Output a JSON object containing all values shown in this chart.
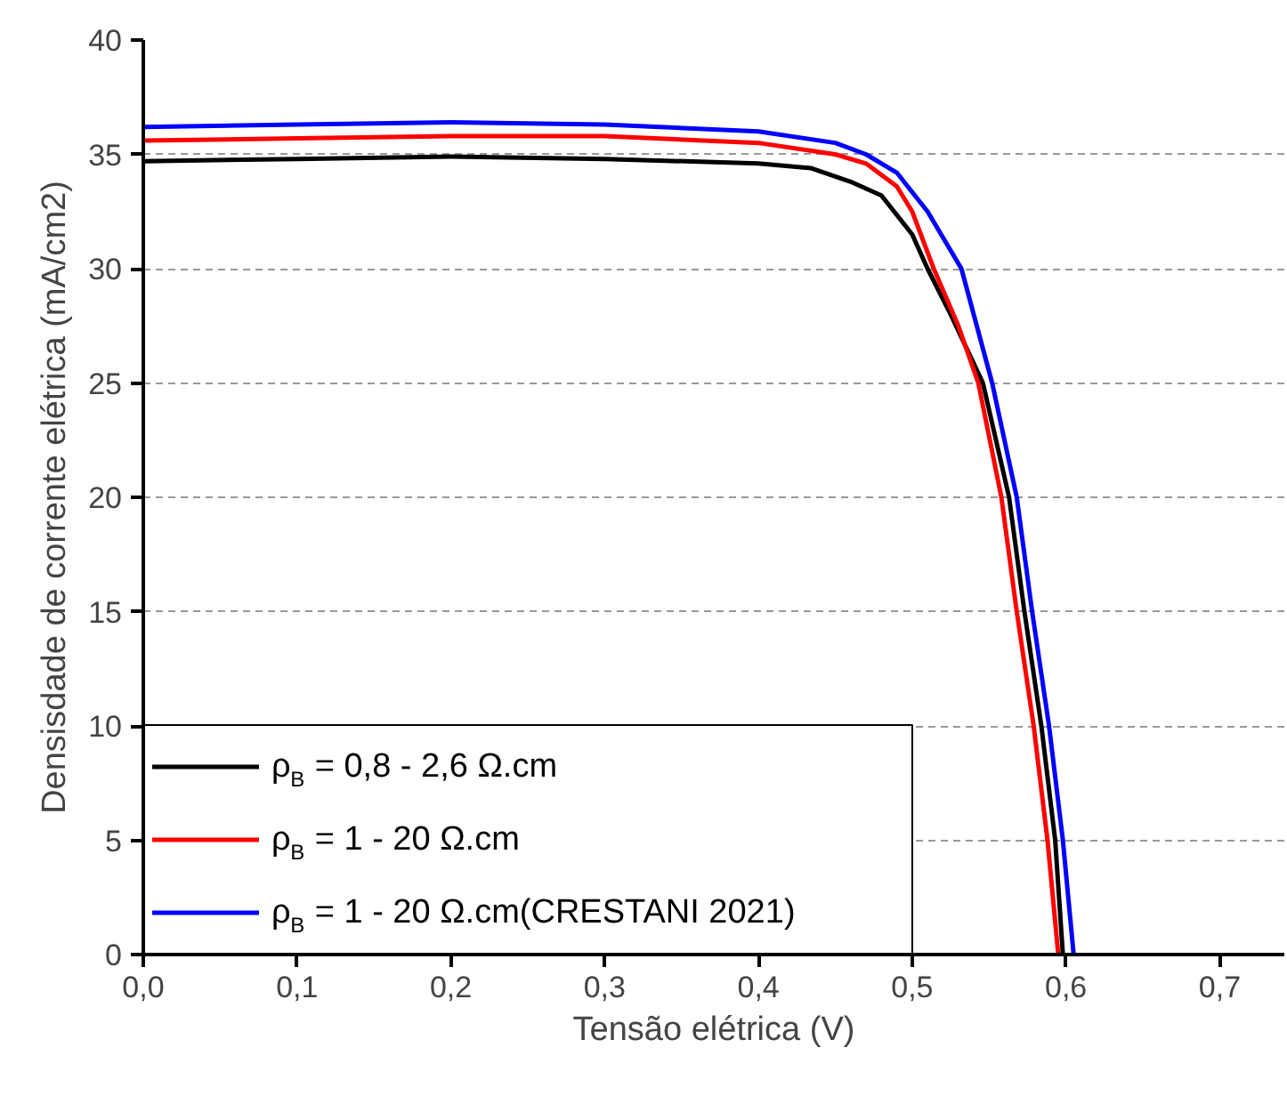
{
  "chart_data": {
    "type": "line",
    "xlabel": "Tensão elétrica (V)",
    "ylabel": "Densisdade de corrente elétrica (mA/cm2)",
    "xlim": [
      0,
      0.742
    ],
    "ylim": [
      0,
      40
    ],
    "xticks": [
      {
        "value": 0,
        "label": "0,0"
      },
      {
        "value": 0.1,
        "label": "0,1"
      },
      {
        "value": 0.2,
        "label": "0,2"
      },
      {
        "value": 0.3,
        "label": "0,3"
      },
      {
        "value": 0.4,
        "label": "0,4"
      },
      {
        "value": 0.5,
        "label": "0,5"
      },
      {
        "value": 0.6,
        "label": "0,6"
      },
      {
        "value": 0.7,
        "label": "0,7"
      }
    ],
    "yticks": [
      0,
      5,
      10,
      15,
      20,
      25,
      30,
      35,
      40
    ],
    "grid": "y",
    "legend": "bottom left",
    "line_style": "solid",
    "marker": "none",
    "series": [
      {
        "name": "ρ$_{B}$ = 0,8 - 2,6 Ω.cm",
        "color": "#000000",
        "x": [
          0,
          0.1,
          0.2,
          0.3,
          0.4,
          0.434,
          0.46,
          0.48,
          0.5,
          0.51,
          0.525,
          0.546,
          0.563,
          0.573,
          0.584,
          0.593,
          0.598
        ],
        "values": [
          34.7,
          34.8,
          34.9,
          34.8,
          34.6,
          34.4,
          33.8,
          33.2,
          31.5,
          30,
          28,
          25,
          20,
          15,
          10,
          5,
          0
        ]
      },
      {
        "name": "ρ$_{B}$ = 1 - 20 Ω.cm",
        "color": "#ff0000",
        "x": [
          0,
          0.1,
          0.2,
          0.3,
          0.4,
          0.45,
          0.47,
          0.49,
          0.5,
          0.514,
          0.53,
          0.543,
          0.558,
          0.568,
          0.579,
          0.588,
          0.595
        ],
        "values": [
          35.6,
          35.7,
          35.8,
          35.8,
          35.5,
          35.0,
          34.6,
          33.6,
          32.5,
          30,
          27.5,
          25,
          20,
          15,
          10,
          5,
          0
        ]
      },
      {
        "name": "ρ$_{B}$ = 1 - 20 Ω.cm(CRESTANI 2021)",
        "color": "#0000ff",
        "x": [
          0,
          0.1,
          0.2,
          0.3,
          0.4,
          0.45,
          0.47,
          0.49,
          0.51,
          0.532,
          0.552,
          0.568,
          0.578,
          0.589,
          0.598,
          0.605
        ],
        "values": [
          36.2,
          36.3,
          36.4,
          36.3,
          36.0,
          35.5,
          35.0,
          34.2,
          32.5,
          30,
          25,
          20,
          15,
          10,
          5,
          0
        ]
      }
    ]
  }
}
